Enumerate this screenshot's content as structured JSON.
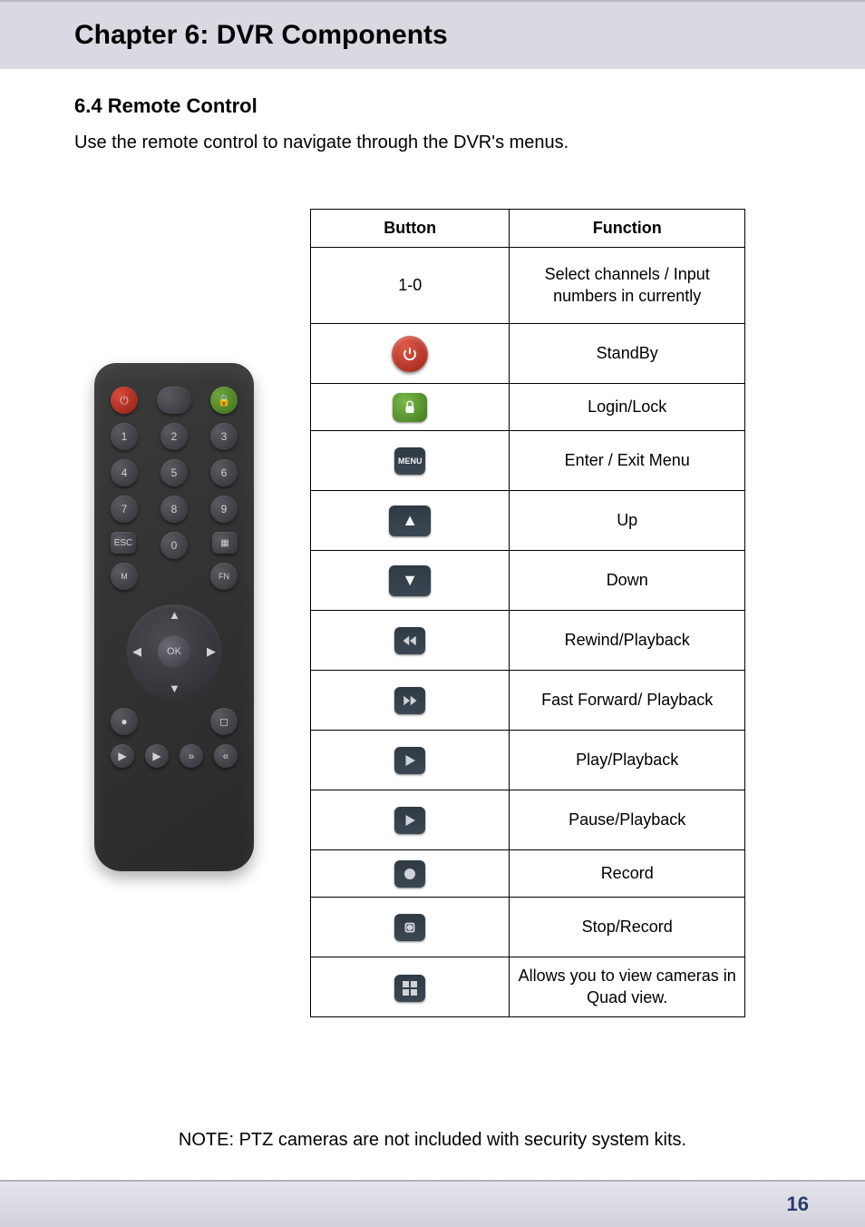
{
  "chapter_title": "Chapter 6: DVR Components",
  "section_title": "6.4 Remote Control",
  "intro_text": "Use the remote control to navigate through the DVR's menus.",
  "table": {
    "header_button": "Button",
    "header_function": "Function",
    "rows": [
      {
        "button_label": "1-0",
        "icon": "text",
        "function": "Select channels / Input numbers in currently",
        "height": "h-tall"
      },
      {
        "button_label": "",
        "icon": "power",
        "function": "StandBy",
        "height": "h-med"
      },
      {
        "button_label": "",
        "icon": "lock",
        "function": "Login/Lock",
        "height": "h-low"
      },
      {
        "button_label": "",
        "icon": "menu",
        "function": "Enter / Exit Menu",
        "height": "h-med"
      },
      {
        "button_label": "",
        "icon": "up",
        "function": "Up",
        "height": "h-med"
      },
      {
        "button_label": "",
        "icon": "down",
        "function": "Down",
        "height": "h-med"
      },
      {
        "button_label": "",
        "icon": "rewind",
        "function": "Rewind/Playback",
        "height": "h-med"
      },
      {
        "button_label": "",
        "icon": "ffwd",
        "function": "Fast Forward/ Playback",
        "height": "h-med"
      },
      {
        "button_label": "",
        "icon": "play",
        "function": "Play/Playback",
        "height": "h-med"
      },
      {
        "button_label": "",
        "icon": "pause",
        "function": "Pause/Playback",
        "height": "h-med"
      },
      {
        "button_label": "",
        "icon": "record",
        "function": "Record",
        "height": "h-low"
      },
      {
        "button_label": "",
        "icon": "stop",
        "function": "Stop/Record",
        "height": "h-med"
      },
      {
        "button_label": "",
        "icon": "quad",
        "function": "Allows you to view cameras in Quad view.",
        "height": "h-med"
      }
    ]
  },
  "note_text": "NOTE: PTZ cameras are not included with security system kits.",
  "page_number": "16",
  "colors": {
    "header_bg": "#d9d9e1",
    "footer_border": "#aeb0bc",
    "page_num": "#2a3a6a",
    "pill_bg_dark": "#3a4752",
    "pill_bg_red": "#e05848",
    "pill_bg_green": "#7ab94a",
    "icon_fg": "#cfd2d6",
    "remote_bg": "#2e2e2e"
  },
  "remote": {
    "labels": {
      "esc": "ESC",
      "ok": "OK",
      "fn": "FN"
    },
    "numbers": [
      "1",
      "2",
      "3",
      "4",
      "5",
      "6",
      "7",
      "8",
      "9",
      "0"
    ]
  }
}
